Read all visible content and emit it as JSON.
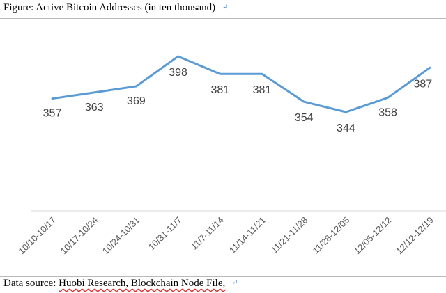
{
  "header": {
    "caption_prefix": "Figure:",
    "caption_title": "Active Bitcoin Addresses (in ten thousand)",
    "return_mark": "↵"
  },
  "footer": {
    "source_prefix": "Data source:",
    "source_text": "Huobi Research, Blockchain Node File,",
    "return_mark": "↵"
  },
  "chart_data": {
    "type": "line",
    "title": "Active Bitcoin Addresses (in ten thousand)",
    "xlabel": "",
    "ylabel": "",
    "ylim": [
      0,
      420
    ],
    "grid": false,
    "legend": "none",
    "line_color": "#5b9bd5",
    "categories": [
      "10/10-10/17",
      "10/17-10/24",
      "10/24-10/31",
      "10/31-11/7",
      "11/7-11/14",
      "11/14-11/21",
      "11/21-11/28",
      "11/28-12/05",
      "12/05-12/12",
      "12/12-12/19"
    ],
    "series": [
      {
        "values": [
          357,
          363,
          369,
          398,
          381,
          381,
          354,
          344,
          358,
          387
        ]
      }
    ],
    "data_labels": [
      "357",
      "363",
      "369",
      "398",
      "381",
      "381",
      "354",
      "344",
      "358",
      "387"
    ]
  }
}
